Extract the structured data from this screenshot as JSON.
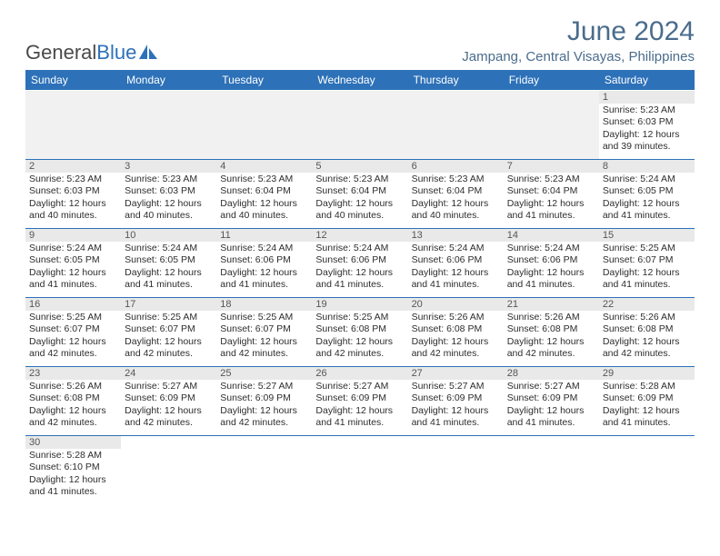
{
  "logo": {
    "text1": "General",
    "text2": "Blue"
  },
  "title": "June 2024",
  "location": "Jampang, Central Visayas, Philippines",
  "colors": {
    "header_bg": "#2d71b8",
    "header_text": "#ffffff",
    "title_color": "#4a6c8c",
    "daynum_bg": "#e9e9e9",
    "border": "#2d71b8"
  },
  "weekdays": [
    "Sunday",
    "Monday",
    "Tuesday",
    "Wednesday",
    "Thursday",
    "Friday",
    "Saturday"
  ],
  "leading_blanks": 6,
  "days": [
    {
      "n": "1",
      "sunrise": "5:23 AM",
      "sunset": "6:03 PM",
      "daylight": "12 hours and 39 minutes."
    },
    {
      "n": "2",
      "sunrise": "5:23 AM",
      "sunset": "6:03 PM",
      "daylight": "12 hours and 40 minutes."
    },
    {
      "n": "3",
      "sunrise": "5:23 AM",
      "sunset": "6:03 PM",
      "daylight": "12 hours and 40 minutes."
    },
    {
      "n": "4",
      "sunrise": "5:23 AM",
      "sunset": "6:04 PM",
      "daylight": "12 hours and 40 minutes."
    },
    {
      "n": "5",
      "sunrise": "5:23 AM",
      "sunset": "6:04 PM",
      "daylight": "12 hours and 40 minutes."
    },
    {
      "n": "6",
      "sunrise": "5:23 AM",
      "sunset": "6:04 PM",
      "daylight": "12 hours and 40 minutes."
    },
    {
      "n": "7",
      "sunrise": "5:23 AM",
      "sunset": "6:04 PM",
      "daylight": "12 hours and 41 minutes."
    },
    {
      "n": "8",
      "sunrise": "5:24 AM",
      "sunset": "6:05 PM",
      "daylight": "12 hours and 41 minutes."
    },
    {
      "n": "9",
      "sunrise": "5:24 AM",
      "sunset": "6:05 PM",
      "daylight": "12 hours and 41 minutes."
    },
    {
      "n": "10",
      "sunrise": "5:24 AM",
      "sunset": "6:05 PM",
      "daylight": "12 hours and 41 minutes."
    },
    {
      "n": "11",
      "sunrise": "5:24 AM",
      "sunset": "6:06 PM",
      "daylight": "12 hours and 41 minutes."
    },
    {
      "n": "12",
      "sunrise": "5:24 AM",
      "sunset": "6:06 PM",
      "daylight": "12 hours and 41 minutes."
    },
    {
      "n": "13",
      "sunrise": "5:24 AM",
      "sunset": "6:06 PM",
      "daylight": "12 hours and 41 minutes."
    },
    {
      "n": "14",
      "sunrise": "5:24 AM",
      "sunset": "6:06 PM",
      "daylight": "12 hours and 41 minutes."
    },
    {
      "n": "15",
      "sunrise": "5:25 AM",
      "sunset": "6:07 PM",
      "daylight": "12 hours and 41 minutes."
    },
    {
      "n": "16",
      "sunrise": "5:25 AM",
      "sunset": "6:07 PM",
      "daylight": "12 hours and 42 minutes."
    },
    {
      "n": "17",
      "sunrise": "5:25 AM",
      "sunset": "6:07 PM",
      "daylight": "12 hours and 42 minutes."
    },
    {
      "n": "18",
      "sunrise": "5:25 AM",
      "sunset": "6:07 PM",
      "daylight": "12 hours and 42 minutes."
    },
    {
      "n": "19",
      "sunrise": "5:25 AM",
      "sunset": "6:08 PM",
      "daylight": "12 hours and 42 minutes."
    },
    {
      "n": "20",
      "sunrise": "5:26 AM",
      "sunset": "6:08 PM",
      "daylight": "12 hours and 42 minutes."
    },
    {
      "n": "21",
      "sunrise": "5:26 AM",
      "sunset": "6:08 PM",
      "daylight": "12 hours and 42 minutes."
    },
    {
      "n": "22",
      "sunrise": "5:26 AM",
      "sunset": "6:08 PM",
      "daylight": "12 hours and 42 minutes."
    },
    {
      "n": "23",
      "sunrise": "5:26 AM",
      "sunset": "6:08 PM",
      "daylight": "12 hours and 42 minutes."
    },
    {
      "n": "24",
      "sunrise": "5:27 AM",
      "sunset": "6:09 PM",
      "daylight": "12 hours and 42 minutes."
    },
    {
      "n": "25",
      "sunrise": "5:27 AM",
      "sunset": "6:09 PM",
      "daylight": "12 hours and 42 minutes."
    },
    {
      "n": "26",
      "sunrise": "5:27 AM",
      "sunset": "6:09 PM",
      "daylight": "12 hours and 41 minutes."
    },
    {
      "n": "27",
      "sunrise": "5:27 AM",
      "sunset": "6:09 PM",
      "daylight": "12 hours and 41 minutes."
    },
    {
      "n": "28",
      "sunrise": "5:27 AM",
      "sunset": "6:09 PM",
      "daylight": "12 hours and 41 minutes."
    },
    {
      "n": "29",
      "sunrise": "5:28 AM",
      "sunset": "6:09 PM",
      "daylight": "12 hours and 41 minutes."
    },
    {
      "n": "30",
      "sunrise": "5:28 AM",
      "sunset": "6:10 PM",
      "daylight": "12 hours and 41 minutes."
    }
  ],
  "labels": {
    "sunrise": "Sunrise: ",
    "sunset": "Sunset: ",
    "daylight": "Daylight: "
  }
}
